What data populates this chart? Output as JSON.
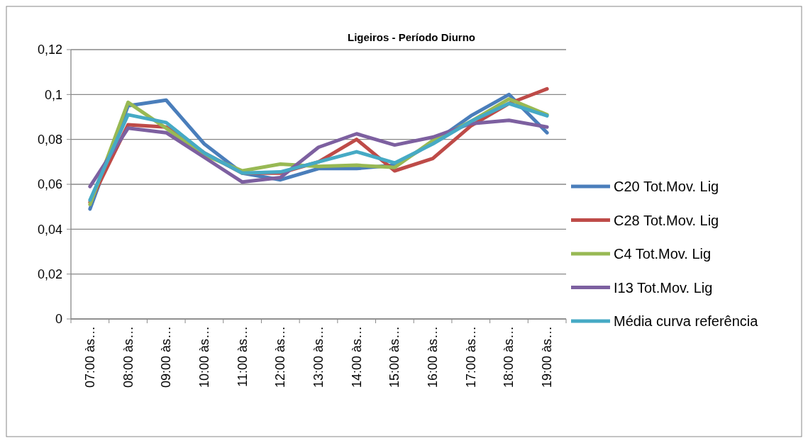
{
  "chart_data": {
    "type": "line",
    "title": "Ligeiros - Período Diurno",
    "categories": [
      "07:00 às…",
      "08:00 às…",
      "09:00 às…",
      "10:00 às…",
      "11:00 às…",
      "12:00 às…",
      "13:00 às…",
      "14:00 às…",
      "15:00 às…",
      "16:00 às…",
      "17:00 às…",
      "18:00 às…",
      "19:00 às…"
    ],
    "series": [
      {
        "name": "C20 Tot.Mov. Lig",
        "color": "#4a7ebb",
        "values": [
          0.049,
          0.095,
          0.0975,
          0.078,
          0.065,
          0.062,
          0.067,
          0.067,
          0.0685,
          0.0785,
          0.0905,
          0.1,
          0.083
        ]
      },
      {
        "name": "C28 Tot.Mov. Lig",
        "color": "#be4b48",
        "values": [
          0.052,
          0.0865,
          0.0855,
          0.074,
          0.065,
          0.065,
          0.07,
          0.08,
          0.066,
          0.0715,
          0.086,
          0.096,
          0.1025
        ]
      },
      {
        "name": "C4 Tot.Mov. Lig",
        "color": "#98b954",
        "values": [
          0.051,
          0.0965,
          0.085,
          0.073,
          0.066,
          0.069,
          0.068,
          0.0685,
          0.0675,
          0.0795,
          0.088,
          0.098,
          0.091
        ]
      },
      {
        "name": "I13 Tot.Mov. Lig",
        "color": "#7d60a0",
        "values": [
          0.059,
          0.085,
          0.083,
          0.072,
          0.061,
          0.063,
          0.0765,
          0.0825,
          0.0775,
          0.081,
          0.087,
          0.0885,
          0.0855
        ]
      },
      {
        "name": "Média curva referência",
        "color": "#46aac5",
        "values": [
          0.053,
          0.091,
          0.0875,
          0.074,
          0.065,
          0.0655,
          0.07,
          0.0745,
          0.0695,
          0.078,
          0.088,
          0.096,
          0.0905
        ]
      }
    ],
    "ylim": [
      0,
      0.12
    ],
    "yticks": [
      {
        "value": 0,
        "label": "0"
      },
      {
        "value": 0.02,
        "label": "0,02"
      },
      {
        "value": 0.04,
        "label": "0,04"
      },
      {
        "value": 0.06,
        "label": "0,06"
      },
      {
        "value": 0.08,
        "label": "0,08"
      },
      {
        "value": 0.1,
        "label": "0,1"
      },
      {
        "value": 0.12,
        "label": "0,12"
      }
    ],
    "grid": "y",
    "legend": "right",
    "marker": "none",
    "line_style": "solid"
  }
}
